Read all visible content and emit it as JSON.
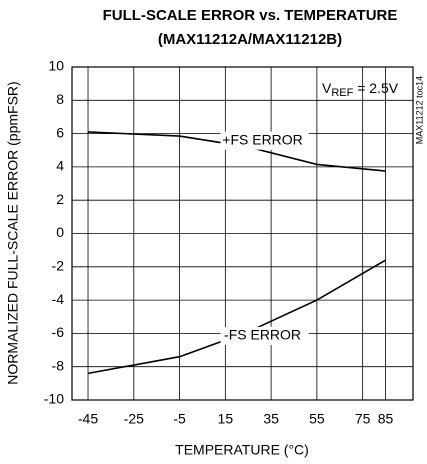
{
  "chart_data": {
    "type": "line",
    "title": [
      "FULL-SCALE ERROR vs. TEMPERATURE",
      "(MAX11212A/MAX11212B)"
    ],
    "x_label": "TEMPERATURE (°C)",
    "y_label": "NORMALIZED FULL-SCALE ERROR (ppmFSR)",
    "annotations": {
      "vref": {
        "main": "V",
        "sub": "REF",
        "rest": " = 2.5V"
      },
      "toc": "MAX11212 toc14"
    },
    "x": [
      -45,
      -5,
      25,
      55,
      85
    ],
    "series": [
      {
        "name": "+FS ERROR",
        "color": "#000000",
        "values": [
          6.1,
          5.85,
          5.2,
          4.15,
          3.75
        ]
      },
      {
        "name": "-FS ERROR",
        "color": "#000000",
        "values": [
          -8.4,
          -7.4,
          -5.9,
          -4.0,
          -1.6
        ]
      }
    ],
    "xlim": [
      -52,
      97
    ],
    "xticks": [
      -45,
      -25,
      -5,
      15,
      35,
      55,
      75,
      85
    ],
    "ylim": [
      -10,
      10
    ],
    "yticks": [
      -10,
      -8,
      -6,
      -4,
      -2,
      0,
      2,
      4,
      6,
      8,
      10
    ],
    "grid": true
  }
}
